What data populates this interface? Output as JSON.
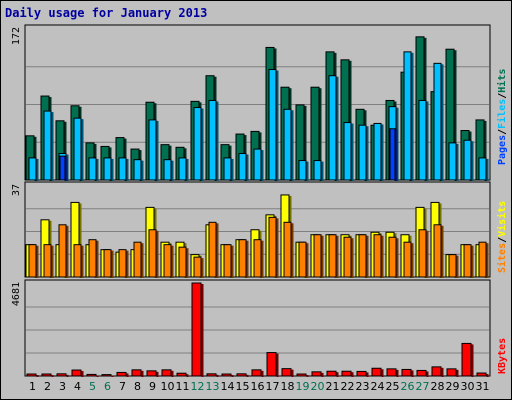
{
  "title": "Daily usage for January 2013",
  "colors": {
    "background": "#c0c0c0",
    "title": "#0000a0",
    "hits": "#007050",
    "files": "#00c0ff",
    "pages": "#0040ff",
    "visits": "#ffff00",
    "sites": "#ff8000",
    "kbytes": "#ff0000",
    "weekend_label": "#007050"
  },
  "chart_data": [
    {
      "type": "bar",
      "panel": "hits-files-pages",
      "y_axis_max_label": "172",
      "ylim": [
        0,
        172
      ],
      "categories": [
        "1",
        "2",
        "3",
        "4",
        "5",
        "6",
        "7",
        "8",
        "9",
        "10",
        "11",
        "12",
        "13",
        "14",
        "15",
        "16",
        "17",
        "18",
        "19",
        "20",
        "21",
        "22",
        "23",
        "24",
        "25",
        "26",
        "27",
        "28",
        "29",
        "30",
        "31"
      ],
      "series": [
        {
          "name": "Hits",
          "values": [
            50,
            95,
            67,
            84,
            42,
            38,
            48,
            35,
            88,
            40,
            37,
            89,
            118,
            40,
            52,
            55,
            150,
            105,
            85,
            105,
            145,
            136,
            80,
            62,
            90,
            122,
            162,
            100,
            148,
            56,
            68
          ]
        },
        {
          "name": "Files",
          "values": [
            25,
            78,
            30,
            70,
            25,
            25,
            25,
            23,
            68,
            23,
            25,
            82,
            90,
            25,
            30,
            35,
            125,
            80,
            22,
            22,
            118,
            65,
            62,
            64,
            83,
            145,
            90,
            132,
            42,
            45,
            25
          ]
        },
        {
          "name": "Pages",
          "values": [
            0,
            0,
            27,
            0,
            0,
            0,
            0,
            0,
            0,
            0,
            0,
            0,
            0,
            0,
            0,
            0,
            0,
            0,
            0,
            0,
            0,
            0,
            0,
            0,
            58,
            0,
            0,
            0,
            0,
            0,
            0
          ]
        }
      ],
      "legend": [
        "Pages",
        "Files",
        "Hits"
      ],
      "legend_placement": "right"
    },
    {
      "type": "bar",
      "panel": "visits-sites",
      "y_axis_max_label": "37",
      "ylim": [
        0,
        37
      ],
      "categories": [
        "1",
        "2",
        "3",
        "4",
        "5",
        "6",
        "7",
        "8",
        "9",
        "10",
        "11",
        "12",
        "13",
        "14",
        "15",
        "16",
        "17",
        "18",
        "19",
        "20",
        "21",
        "22",
        "23",
        "24",
        "25",
        "26",
        "27",
        "28",
        "29",
        "30",
        "31"
      ],
      "series": [
        {
          "name": "Visits",
          "values": [
            13,
            23,
            13,
            30,
            13,
            11,
            10,
            11,
            28,
            14,
            14,
            9,
            21,
            13,
            15,
            19,
            25,
            33,
            14,
            17,
            17,
            17,
            17,
            18,
            18,
            17,
            28,
            30,
            9,
            13,
            13
          ]
        },
        {
          "name": "Sites",
          "values": [
            13,
            13,
            21,
            13,
            15,
            11,
            11,
            14,
            19,
            13,
            12,
            8,
            22,
            13,
            15,
            15,
            24,
            22,
            14,
            17,
            17,
            16,
            17,
            17,
            16,
            14,
            19,
            21,
            9,
            13,
            14
          ]
        }
      ],
      "legend": [
        "Sites",
        "Visits"
      ],
      "legend_placement": "right"
    },
    {
      "type": "bar",
      "panel": "kbytes",
      "y_axis_max_label": "4681",
      "ylim": [
        0,
        4681
      ],
      "categories": [
        "1",
        "2",
        "3",
        "4",
        "5",
        "6",
        "7",
        "8",
        "9",
        "10",
        "11",
        "12",
        "13",
        "14",
        "15",
        "16",
        "17",
        "18",
        "19",
        "20",
        "21",
        "22",
        "23",
        "24",
        "25",
        "26",
        "27",
        "28",
        "29",
        "30",
        "31"
      ],
      "series": [
        {
          "name": "KBytes",
          "values": [
            100,
            100,
            110,
            300,
            80,
            70,
            180,
            310,
            260,
            310,
            140,
            4681,
            110,
            100,
            110,
            310,
            1180,
            370,
            100,
            210,
            240,
            240,
            230,
            390,
            360,
            330,
            280,
            460,
            360,
            1640,
            150
          ]
        }
      ],
      "legend": [
        "KBytes"
      ],
      "legend_placement": "right"
    }
  ],
  "x_tick_labels": [
    "1",
    "2",
    "3",
    "4",
    "5",
    "6",
    "7",
    "8",
    "9",
    "10",
    "11",
    "12",
    "13",
    "14",
    "15",
    "16",
    "17",
    "18",
    "19",
    "20",
    "21",
    "22",
    "23",
    "24",
    "25",
    "26",
    "27",
    "28",
    "29",
    "30",
    "31"
  ],
  "weekend_days": [
    5,
    6,
    12,
    13,
    19,
    20,
    26,
    27
  ],
  "legend_text": {
    "pages": "Pages",
    "files": "Files",
    "hits": "Hits",
    "sites": "Sites",
    "visits": "Visits",
    "kbytes": "KBytes",
    "separator": "/"
  }
}
